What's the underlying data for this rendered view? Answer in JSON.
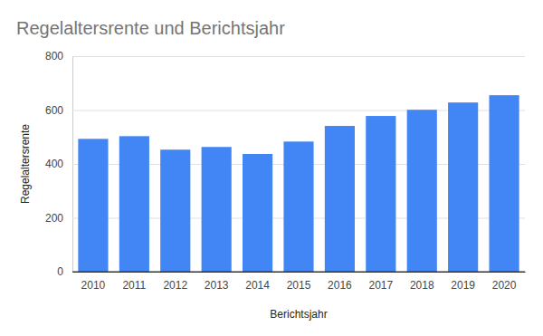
{
  "chart_data": {
    "type": "bar",
    "title": "Regelaltersrente und Berichtsjahr",
    "x_label": "Berichtsjahr",
    "y_label": "Regelaltersrente",
    "categories": [
      "2010",
      "2011",
      "2012",
      "2013",
      "2014",
      "2015",
      "2016",
      "2017",
      "2018",
      "2019",
      "2020"
    ],
    "values": [
      493,
      503,
      453,
      463,
      437,
      483,
      541,
      578,
      601,
      628,
      655
    ],
    "color": "#4285f4",
    "ylim": [
      0,
      800
    ],
    "yticks": [
      0,
      200,
      400,
      600,
      800
    ],
    "grid": true
  }
}
